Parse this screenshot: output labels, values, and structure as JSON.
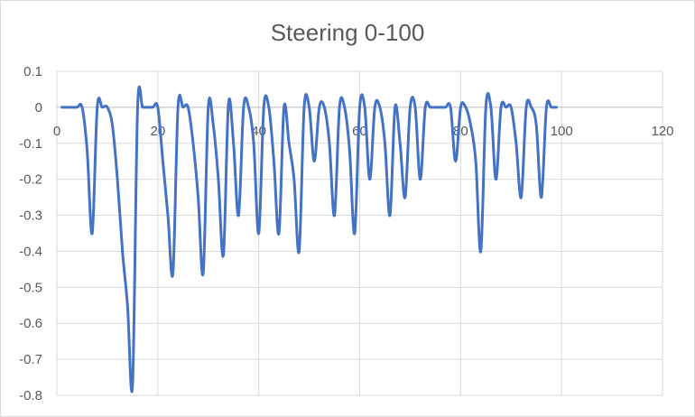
{
  "chart_data": {
    "type": "line",
    "title": "Steering 0-100",
    "xlabel": "",
    "ylabel": "",
    "xlim": [
      0,
      120
    ],
    "ylim": [
      -0.8,
      0.1
    ],
    "x_ticks": [
      "0",
      "20",
      "40",
      "60",
      "80",
      "100",
      "120"
    ],
    "y_ticks": [
      "0.1",
      "0",
      "-0.1",
      "-0.2",
      "-0.3",
      "-0.4",
      "-0.5",
      "-0.6",
      "-0.7",
      "-0.8"
    ],
    "grid": true,
    "legend": "none",
    "series": [
      {
        "color": "#4472c4",
        "x": [
          1,
          2,
          3,
          4,
          5,
          6,
          7,
          8,
          9,
          10,
          11,
          12,
          13,
          14,
          15,
          16,
          17,
          18,
          19,
          20,
          21,
          22,
          23,
          24,
          25,
          26,
          27,
          28,
          29,
          30,
          31,
          32,
          33,
          34,
          35,
          36,
          37,
          38,
          39,
          40,
          41,
          42,
          43,
          44,
          45,
          46,
          47,
          48,
          49,
          50,
          51,
          52,
          53,
          54,
          55,
          56,
          57,
          58,
          59,
          60,
          61,
          62,
          63,
          64,
          65,
          66,
          67,
          68,
          69,
          70,
          71,
          72,
          73,
          74,
          75,
          76,
          77,
          78,
          79,
          80,
          81,
          82,
          83,
          84,
          85,
          86,
          87,
          88,
          89,
          90,
          91,
          92,
          93,
          94,
          95,
          96,
          97,
          98,
          99
        ],
        "y": [
          0,
          0,
          0,
          0,
          0,
          -0.12,
          -0.35,
          0,
          0,
          0,
          -0.05,
          -0.2,
          -0.4,
          -0.55,
          -0.77,
          0,
          0,
          0,
          0,
          0,
          -0.15,
          -0.3,
          -0.46,
          0,
          0,
          0,
          -0.1,
          -0.25,
          -0.46,
          0,
          -0.05,
          -0.2,
          -0.41,
          0.01,
          -0.1,
          -0.3,
          0,
          0,
          -0.1,
          -0.35,
          0,
          0,
          -0.15,
          -0.35,
          0,
          -0.1,
          -0.2,
          -0.4,
          0,
          0,
          -0.15,
          0,
          0,
          -0.1,
          -0.3,
          0,
          0,
          -0.12,
          -0.35,
          0,
          0,
          -0.2,
          0,
          0,
          -0.1,
          -0.3,
          0,
          -0.1,
          -0.25,
          0,
          0,
          -0.2,
          0,
          0,
          0,
          0,
          0,
          0,
          -0.15,
          0,
          0,
          -0.05,
          -0.15,
          -0.4,
          0,
          0,
          -0.2,
          0,
          0,
          0,
          -0.1,
          -0.25,
          0,
          0,
          -0.05,
          -0.25,
          0,
          0,
          0
        ]
      }
    ]
  }
}
